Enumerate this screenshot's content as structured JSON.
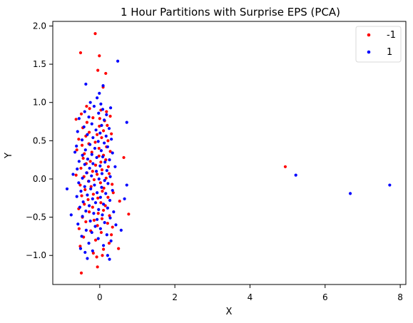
{
  "chart_data": {
    "type": "scatter",
    "title": "1 Hour Partitions with Surprise EPS (PCA)",
    "xlabel": "X",
    "ylabel": "Y",
    "xlim": [
      -1.25,
      8.15
    ],
    "ylim": [
      -1.38,
      2.06
    ],
    "xticks": [
      0,
      2,
      4,
      6,
      8
    ],
    "yticks": [
      -1.0,
      -0.5,
      0.0,
      0.5,
      1.0,
      1.5,
      2.0
    ],
    "xtick_labels": [
      "0",
      "2",
      "4",
      "6",
      "8"
    ],
    "ytick_labels": [
      "−1.0",
      "−0.5",
      "0.0",
      "0.5",
      "1.0",
      "1.5",
      "2.0"
    ],
    "grid": false,
    "legend_position": "top-right",
    "series": [
      {
        "name": "-1",
        "color": "#ff0000",
        "points": [
          [
            -0.12,
            1.9
          ],
          [
            -0.51,
            1.65
          ],
          [
            -0.01,
            1.61
          ],
          [
            -0.05,
            1.42
          ],
          [
            0.16,
            1.38
          ],
          [
            0.09,
            1.2
          ],
          [
            -0.35,
            0.95
          ],
          [
            -0.27,
            0.92
          ],
          [
            0.03,
            0.9
          ],
          [
            0.18,
            0.88
          ],
          [
            -0.49,
            0.85
          ],
          [
            0.28,
            0.82
          ],
          [
            -0.18,
            0.8
          ],
          [
            0.0,
            0.79
          ],
          [
            -0.63,
            0.78
          ],
          [
            0.13,
            0.76
          ],
          [
            -0.34,
            0.74
          ],
          [
            0.2,
            0.7
          ],
          [
            -0.01,
            0.69
          ],
          [
            -0.45,
            0.67
          ],
          [
            0.1,
            0.63
          ],
          [
            -0.28,
            0.61
          ],
          [
            0.31,
            0.59
          ],
          [
            -0.07,
            0.58
          ],
          [
            -0.37,
            0.56
          ],
          [
            0.05,
            0.54
          ],
          [
            -0.56,
            0.52
          ],
          [
            0.22,
            0.5
          ],
          [
            -0.12,
            0.48
          ],
          [
            -0.29,
            0.46
          ],
          [
            -0.47,
            0.44
          ],
          [
            0.18,
            0.42
          ],
          [
            -0.02,
            0.4
          ],
          [
            -0.61,
            0.38
          ],
          [
            0.28,
            0.36
          ],
          [
            -0.21,
            0.35
          ],
          [
            -0.41,
            0.33
          ],
          [
            0.1,
            0.31
          ],
          [
            -0.02,
            0.3
          ],
          [
            0.64,
            0.28
          ],
          [
            -0.44,
            0.27
          ],
          [
            0.16,
            0.25
          ],
          [
            -0.25,
            0.23
          ],
          [
            0.03,
            0.22
          ],
          [
            -0.36,
            0.2
          ],
          [
            -0.11,
            0.18
          ],
          [
            0.23,
            0.16
          ],
          [
            -0.5,
            0.14
          ],
          [
            0.06,
            0.12
          ],
          [
            -0.19,
            0.1
          ],
          [
            -0.34,
            0.08
          ],
          [
            0.25,
            0.07
          ],
          [
            -0.07,
            0.06
          ],
          [
            -0.63,
            0.05
          ],
          [
            -0.42,
            0.03
          ],
          [
            0.17,
            0.01
          ],
          [
            -0.15,
            -0.01
          ],
          [
            -0.3,
            -0.03
          ],
          [
            0.02,
            -0.05
          ],
          [
            0.33,
            -0.07
          ],
          [
            -0.52,
            -0.08
          ],
          [
            -0.23,
            -0.1
          ],
          [
            0.11,
            -0.12
          ],
          [
            -0.39,
            -0.14
          ],
          [
            0.07,
            -0.16
          ],
          [
            0.36,
            -0.18
          ],
          [
            -0.17,
            -0.2
          ],
          [
            -0.48,
            -0.22
          ],
          [
            0.22,
            -0.24
          ],
          [
            -0.05,
            -0.25
          ],
          [
            -0.31,
            -0.27
          ],
          [
            0.53,
            -0.29
          ],
          [
            0.03,
            -0.31
          ],
          [
            -0.41,
            -0.33
          ],
          [
            0.15,
            -0.35
          ],
          [
            -0.19,
            -0.37
          ],
          [
            -0.56,
            -0.39
          ],
          [
            0.1,
            -0.41
          ],
          [
            0.77,
            -0.46
          ],
          [
            -0.28,
            -0.43
          ],
          [
            -0.04,
            -0.45
          ],
          [
            0.26,
            -0.48
          ],
          [
            -0.46,
            -0.5
          ],
          [
            0.06,
            -0.52
          ],
          [
            -0.15,
            -0.54
          ],
          [
            -0.37,
            -0.56
          ],
          [
            0.21,
            -0.58
          ],
          [
            -0.06,
            -0.61
          ],
          [
            0.34,
            -0.63
          ],
          [
            -0.55,
            -0.65
          ],
          [
            -0.24,
            -0.68
          ],
          [
            0.04,
            -0.7
          ],
          [
            0.31,
            -0.73
          ],
          [
            -0.43,
            -0.76
          ],
          [
            -0.11,
            -0.8
          ],
          [
            0.25,
            -0.84
          ],
          [
            -0.52,
            -0.88
          ],
          [
            0.1,
            -0.92
          ],
          [
            0.5,
            -0.91
          ],
          [
            -0.17,
            -0.97
          ],
          [
            -0.08,
            -1.02
          ],
          [
            0.07,
            -1.0
          ],
          [
            -0.06,
            -1.15
          ],
          [
            -0.49,
            -1.23
          ],
          [
            4.94,
            0.16
          ]
        ]
      },
      {
        "name": "1",
        "color": "#0000ff",
        "points": [
          [
            0.48,
            1.54
          ],
          [
            -0.37,
            1.24
          ],
          [
            0.09,
            1.22
          ],
          [
            -0.01,
            1.12
          ],
          [
            -0.07,
            1.06
          ],
          [
            -0.25,
            1.0
          ],
          [
            0.03,
            0.98
          ],
          [
            -0.15,
            0.95
          ],
          [
            0.29,
            0.93
          ],
          [
            0.08,
            0.91
          ],
          [
            -0.4,
            0.88
          ],
          [
            -0.03,
            0.86
          ],
          [
            0.18,
            0.84
          ],
          [
            -0.29,
            0.81
          ],
          [
            -0.55,
            0.79
          ],
          [
            0.12,
            0.77
          ],
          [
            0.72,
            0.74
          ],
          [
            -0.21,
            0.72
          ],
          [
            0.05,
            0.7
          ],
          [
            -0.42,
            0.68
          ],
          [
            0.25,
            0.66
          ],
          [
            -0.1,
            0.64
          ],
          [
            -0.59,
            0.62
          ],
          [
            0.01,
            0.6
          ],
          [
            -0.33,
            0.58
          ],
          [
            0.17,
            0.56
          ],
          [
            -0.18,
            0.54
          ],
          [
            0.31,
            0.52
          ],
          [
            -0.47,
            0.51
          ],
          [
            -0.04,
            0.49
          ],
          [
            0.12,
            0.47
          ],
          [
            -0.26,
            0.45
          ],
          [
            -0.62,
            0.43
          ],
          [
            0.21,
            0.42
          ],
          [
            -0.13,
            0.4
          ],
          [
            -0.38,
            0.38
          ],
          [
            0.04,
            0.37
          ],
          [
            -0.66,
            0.35
          ],
          [
            0.34,
            0.34
          ],
          [
            -0.21,
            0.32
          ],
          [
            -0.46,
            0.31
          ],
          [
            0.08,
            0.29
          ],
          [
            -0.08,
            0.28
          ],
          [
            -0.32,
            0.26
          ],
          [
            0.26,
            0.25
          ],
          [
            -0.55,
            0.23
          ],
          [
            0.14,
            0.22
          ],
          [
            -0.18,
            0.2
          ],
          [
            -0.4,
            0.19
          ],
          [
            0.01,
            0.17
          ],
          [
            0.41,
            0.16
          ],
          [
            -0.27,
            0.14
          ],
          [
            -0.6,
            0.13
          ],
          [
            0.19,
            0.11
          ],
          [
            -0.09,
            0.1
          ],
          [
            -0.35,
            0.08
          ],
          [
            0.06,
            0.07
          ],
          [
            -0.71,
            0.06
          ],
          [
            -0.22,
            0.04
          ],
          [
            0.28,
            0.03
          ],
          [
            -0.46,
            0.01
          ],
          [
            -0.02,
            0.0
          ],
          [
            0.13,
            -0.02
          ],
          [
            -0.29,
            -0.03
          ],
          [
            -0.56,
            -0.05
          ],
          [
            0.22,
            -0.06
          ],
          [
            -0.14,
            -0.08
          ],
          [
            0.72,
            -0.08
          ],
          [
            -0.4,
            -0.1
          ],
          [
            0.05,
            -0.11
          ],
          [
            -0.24,
            -0.13
          ],
          [
            -0.87,
            -0.13
          ],
          [
            0.34,
            -0.15
          ],
          [
            -0.5,
            -0.16
          ],
          [
            -0.07,
            -0.18
          ],
          [
            0.16,
            -0.19
          ],
          [
            -0.33,
            -0.21
          ],
          [
            -0.61,
            -0.23
          ],
          [
            0.02,
            -0.24
          ],
          [
            -0.19,
            -0.26
          ],
          [
            0.66,
            -0.26
          ],
          [
            0.27,
            -0.28
          ],
          [
            -0.44,
            -0.3
          ],
          [
            -0.11,
            -0.31
          ],
          [
            0.1,
            -0.33
          ],
          [
            -0.28,
            -0.35
          ],
          [
            -0.53,
            -0.37
          ],
          [
            0.21,
            -0.38
          ],
          [
            -0.03,
            -0.4
          ],
          [
            -0.37,
            -0.42
          ],
          [
            0.37,
            -0.43
          ],
          [
            -0.16,
            -0.45
          ],
          [
            -0.76,
            -0.47
          ],
          [
            0.07,
            -0.47
          ],
          [
            -0.46,
            -0.49
          ],
          [
            0.28,
            -0.51
          ],
          [
            -0.07,
            -0.53
          ],
          [
            -0.25,
            -0.55
          ],
          [
            0.13,
            -0.57
          ],
          [
            -0.58,
            -0.59
          ],
          [
            0.43,
            -0.6
          ],
          [
            -0.12,
            -0.62
          ],
          [
            0.02,
            -0.65
          ],
          [
            -0.36,
            -0.67
          ],
          [
            0.57,
            -0.67
          ],
          [
            -0.21,
            -0.7
          ],
          [
            0.19,
            -0.73
          ],
          [
            -0.48,
            -0.75
          ],
          [
            -0.04,
            -0.78
          ],
          [
            0.3,
            -0.81
          ],
          [
            -0.29,
            -0.84
          ],
          [
            0.1,
            -0.87
          ],
          [
            -0.51,
            -0.91
          ],
          [
            -0.19,
            -0.94
          ],
          [
            -0.39,
            -0.96
          ],
          [
            0.21,
            -1.0
          ],
          [
            -0.33,
            -1.04
          ],
          [
            0.26,
            -1.05
          ],
          [
            5.22,
            0.05
          ],
          [
            6.67,
            -0.19
          ],
          [
            7.72,
            -0.08
          ]
        ]
      }
    ]
  }
}
